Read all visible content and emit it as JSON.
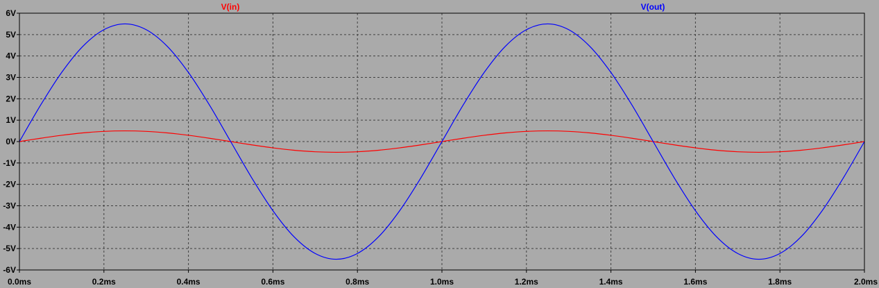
{
  "chart_data": {
    "type": "line",
    "title": "",
    "xlabel": "",
    "ylabel": "",
    "x_unit": "ms",
    "y_unit": "V",
    "xlim": [
      0.0,
      2.0
    ],
    "ylim": [
      -6,
      6
    ],
    "x_ticks": [
      0.0,
      0.2,
      0.4,
      0.6,
      0.8,
      1.0,
      1.2,
      1.4,
      1.6,
      1.8,
      2.0
    ],
    "x_tick_labels": [
      "0.0ms",
      "0.2ms",
      "0.4ms",
      "0.6ms",
      "0.8ms",
      "1.0ms",
      "1.2ms",
      "1.4ms",
      "1.6ms",
      "1.8ms",
      "2.0ms"
    ],
    "y_ticks": [
      6,
      5,
      4,
      3,
      2,
      1,
      0,
      -1,
      -2,
      -3,
      -4,
      -5,
      -6
    ],
    "y_tick_labels": [
      "6V",
      "5V",
      "4V",
      "3V",
      "2V",
      "1V",
      "0V",
      "-1V",
      "-2V",
      "-3V",
      "-4V",
      "-5V",
      "-6V"
    ],
    "grid": true,
    "legend": "top, inline labels above plot",
    "colors": {
      "background": "#aaaaaa",
      "grid": "#404040",
      "frame": "#000000"
    },
    "series": [
      {
        "name": "V(in)",
        "color": "#ff0000",
        "x": [
          0.0,
          0.05,
          0.1,
          0.15,
          0.2,
          0.25,
          0.3,
          0.35,
          0.4,
          0.45,
          0.5,
          0.55,
          0.6,
          0.65,
          0.7,
          0.75,
          0.8,
          0.85,
          0.9,
          0.95,
          1.0,
          1.05,
          1.1,
          1.15,
          1.2,
          1.25,
          1.3,
          1.35,
          1.4,
          1.45,
          1.5,
          1.55,
          1.6,
          1.65,
          1.7,
          1.75,
          1.8,
          1.85,
          1.9,
          1.95,
          2.0
        ],
        "values": [
          0.0,
          0.155,
          0.294,
          0.405,
          0.476,
          0.5,
          0.476,
          0.405,
          0.294,
          0.155,
          0.0,
          -0.155,
          -0.294,
          -0.405,
          -0.476,
          -0.5,
          -0.476,
          -0.405,
          -0.294,
          -0.155,
          0.0,
          0.155,
          0.294,
          0.405,
          0.476,
          0.5,
          0.476,
          0.405,
          0.294,
          0.155,
          0.0,
          -0.155,
          -0.294,
          -0.405,
          -0.476,
          -0.5,
          -0.476,
          -0.405,
          -0.294,
          -0.155,
          0.0
        ]
      },
      {
        "name": "V(out)",
        "color": "#0000ff",
        "x": [
          0.0,
          0.05,
          0.1,
          0.15,
          0.2,
          0.25,
          0.3,
          0.35,
          0.4,
          0.45,
          0.5,
          0.55,
          0.6,
          0.65,
          0.7,
          0.75,
          0.8,
          0.85,
          0.9,
          0.95,
          1.0,
          1.05,
          1.1,
          1.15,
          1.2,
          1.25,
          1.3,
          1.35,
          1.4,
          1.45,
          1.5,
          1.55,
          1.6,
          1.65,
          1.7,
          1.75,
          1.8,
          1.85,
          1.9,
          1.95,
          2.0
        ],
        "values": [
          0.0,
          1.7,
          3.23,
          4.45,
          5.23,
          5.5,
          5.23,
          4.45,
          3.23,
          1.7,
          0.0,
          -1.7,
          -3.23,
          -4.45,
          -5.23,
          -5.5,
          -5.23,
          -4.45,
          -3.23,
          -1.7,
          0.0,
          1.7,
          3.23,
          4.45,
          5.23,
          5.5,
          5.23,
          4.45,
          3.23,
          1.7,
          0.0,
          -1.7,
          -3.23,
          -4.45,
          -5.23,
          -5.5,
          -5.23,
          -4.45,
          -3.23,
          -1.7,
          0.0
        ]
      }
    ]
  }
}
